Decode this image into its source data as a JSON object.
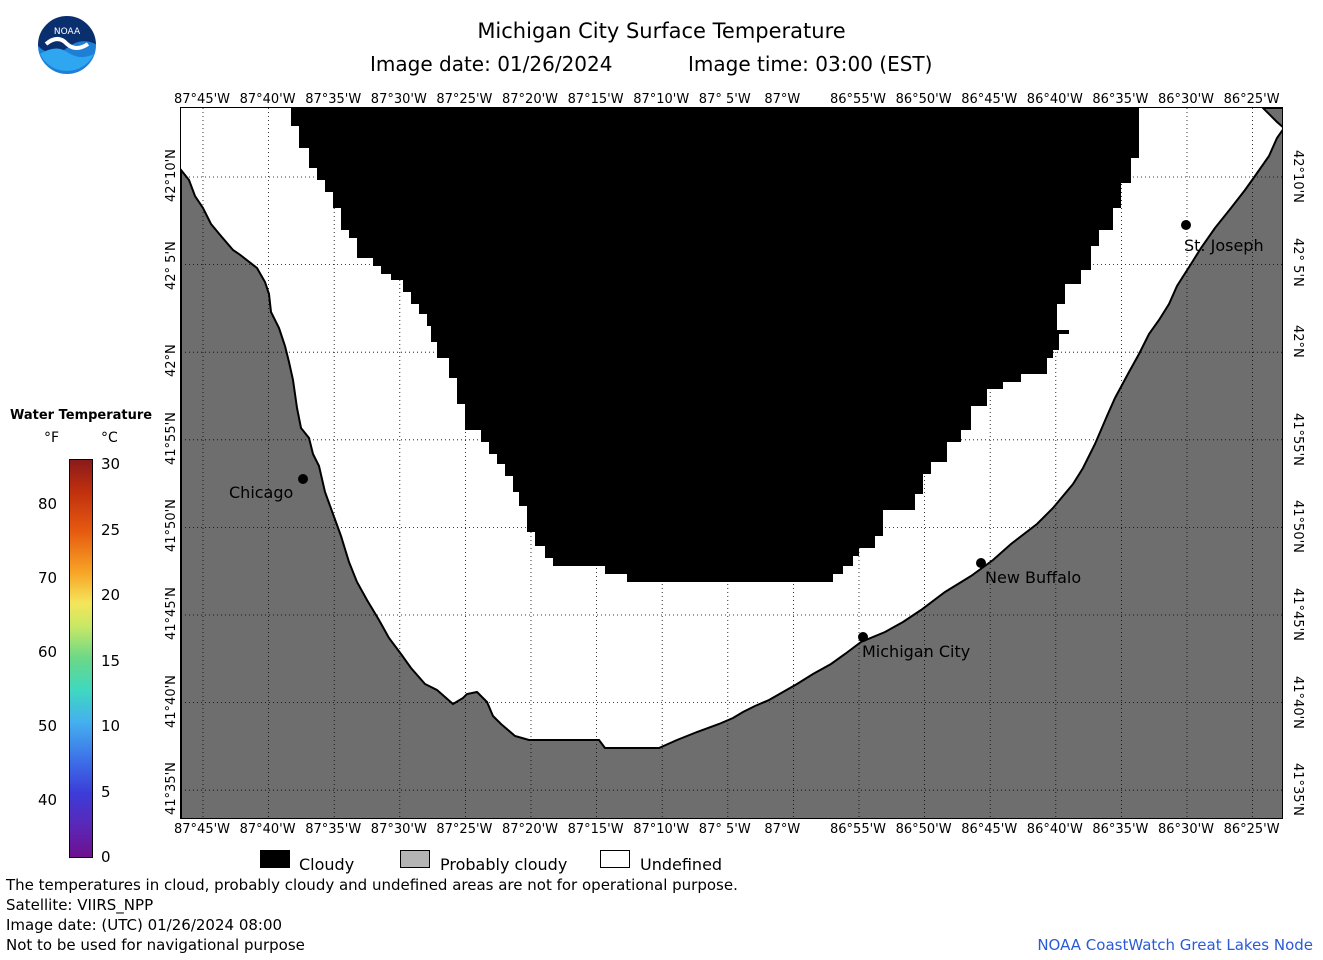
{
  "header": {
    "title": "Michigan City Surface Temperature",
    "image_date": "Image date: 01/26/2024",
    "image_time": "Image time: 03:00 (EST)"
  },
  "logo": {
    "text": "NOAA"
  },
  "map": {
    "lon_labels": [
      "87°45'W",
      "87°40'W",
      "87°35'W",
      "87°30'W",
      "87°25'W",
      "87°20'W",
      "87°15'W",
      "87°10'W",
      "87° 5'W",
      "87°W",
      "86°55'W",
      "86°50'W",
      "86°45'W",
      "86°40'W",
      "86°35'W",
      "86°30'W",
      "86°25'W"
    ],
    "lat_labels": [
      "42°10'N",
      "42° 5'N",
      "42°N",
      "41°55'N",
      "41°50'N",
      "41°45'N",
      "41°40'N",
      "41°35'N"
    ],
    "cities": {
      "chicago": "Chicago",
      "st_joseph": "St. Joseph",
      "new_buffalo": "New Buffalo",
      "michigan_city": "Michigan City"
    },
    "colors": {
      "cloudy": "#000000",
      "land": "#6e6e6e",
      "undefined": "#ffffff",
      "grid": "#000000"
    }
  },
  "legend": {
    "title": "Water Temperature",
    "unit_f": "°F",
    "unit_c": "°C",
    "f_labels": [
      "80",
      "70",
      "60",
      "50",
      "40"
    ],
    "c_labels": [
      "30",
      "25",
      "20",
      "15",
      "10",
      "5",
      "0"
    ]
  },
  "key": {
    "cloudy": "Cloudy",
    "probably_cloudy": "Probably cloudy",
    "undefined": "Undefined",
    "colors": {
      "cloudy": "#000000",
      "probably_cloudy": "#b4b4b4",
      "undefined": "#ffffff"
    }
  },
  "footer": {
    "note": "The temperatures in cloud, probably cloudy and undefined areas are not for operational purpose.",
    "satellite": "Satellite: VIIRS_NPP",
    "utc_date": "Image date: (UTC) 01/26/2024  08:00",
    "nav_warning": "Not to be used for navigational purpose",
    "credit": "NOAA CoastWatch Great Lakes Node"
  }
}
